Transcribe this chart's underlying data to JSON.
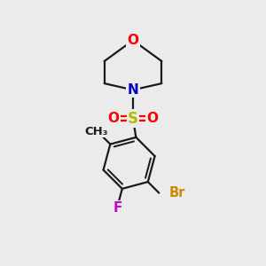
{
  "bg_color": "#ebebeb",
  "bond_color": "#1a1a1a",
  "bond_width": 1.6,
  "atom_colors": {
    "O": "#ff0000",
    "N": "#0000cc",
    "S": "#b8b800",
    "Br": "#cc8800",
    "F": "#cc00cc",
    "C": "#1a1a1a"
  },
  "font_size": 11,
  "figsize": [
    3.0,
    3.0
  ],
  "dpi": 100
}
